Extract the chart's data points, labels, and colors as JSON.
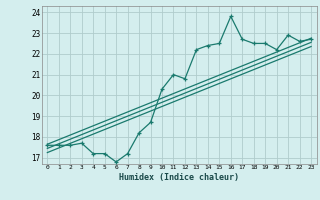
{
  "xlabel": "Humidex (Indice chaleur)",
  "ylabel": "",
  "xlim": [
    -0.5,
    23.5
  ],
  "ylim": [
    16.7,
    24.3
  ],
  "yticks": [
    17,
    18,
    19,
    20,
    21,
    22,
    23,
    24
  ],
  "xticks": [
    0,
    1,
    2,
    3,
    4,
    5,
    6,
    7,
    8,
    9,
    10,
    11,
    12,
    13,
    14,
    15,
    16,
    17,
    18,
    19,
    20,
    21,
    22,
    23
  ],
  "bg_color": "#d4eeee",
  "grid_color": "#b0cccc",
  "line_color": "#1a7a6e",
  "data_x": [
    0,
    1,
    2,
    3,
    4,
    5,
    6,
    7,
    8,
    9,
    10,
    11,
    12,
    13,
    14,
    15,
    16,
    17,
    18,
    19,
    20,
    21,
    22,
    23
  ],
  "data_y": [
    17.6,
    17.6,
    17.6,
    17.7,
    17.2,
    17.2,
    16.8,
    17.2,
    18.2,
    18.7,
    20.3,
    21.0,
    20.8,
    22.2,
    22.4,
    22.5,
    23.8,
    22.7,
    22.5,
    22.5,
    22.2,
    22.9,
    22.6,
    22.7
  ],
  "reg_lines": [
    {
      "x0": 0,
      "y0": 17.65,
      "x1": 23,
      "y1": 22.75
    },
    {
      "x0": 0,
      "y0": 17.45,
      "x1": 23,
      "y1": 22.55
    },
    {
      "x0": 0,
      "y0": 17.25,
      "x1": 23,
      "y1": 22.35
    }
  ]
}
